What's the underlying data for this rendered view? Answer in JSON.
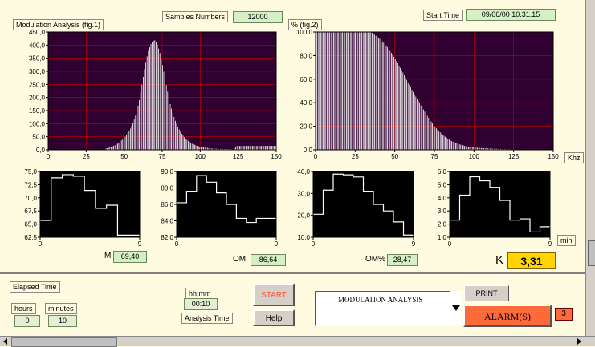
{
  "fig1": {
    "title": "Modulation Analysis (fig.1)"
  },
  "fig2": {
    "title": "% (fig.2)"
  },
  "samples": {
    "label": "Samples Numbers",
    "value": "12000"
  },
  "start_time": {
    "label": "Start Time",
    "value": "09/06/00 10.31.15"
  },
  "units": {
    "khz": "Khz",
    "min": "min"
  },
  "readouts": {
    "m": {
      "label": "M",
      "value": "69,40"
    },
    "om": {
      "label": "OM",
      "value": "86,64"
    },
    "om_pct": {
      "label": "OM%",
      "value": "28,47"
    },
    "k": {
      "label": "K",
      "value": "3,31"
    }
  },
  "controls": {
    "elapsed_label": "Elapsed Time",
    "hours_label": "hours",
    "minutes_label": "minutes",
    "hours_value": "0",
    "minutes_value": "10",
    "hhmm_label": "hh:mm",
    "analysis_value": "00:10",
    "analysis_label": "Analysis Time",
    "start_label": "START",
    "help_label": "Help",
    "mode_value": "MODULATION ANALYSIS",
    "print_label": "PRINT",
    "alarm_label": "ALARM(S)",
    "alarm_count": "3"
  },
  "colors": {
    "plot_bg": "#300030",
    "grid": "#c00000",
    "bars": "#ffffff",
    "alarm": "#ff6a3a",
    "k_bg": "#ffd400"
  },
  "chart_data": [
    {
      "type": "bar",
      "name": "fig1-histogram",
      "title": "Modulation Analysis (fig.1)",
      "xlim": [
        0,
        150
      ],
      "ylim": [
        0,
        450
      ],
      "xticks": [
        "0",
        "25",
        "50",
        "75",
        "100",
        "125",
        "150"
      ],
      "yticks": [
        "0,0",
        "50,0",
        "100,0",
        "150,0",
        "200,0",
        "250,0",
        "300,0",
        "350,0",
        "400,0",
        "450,0"
      ],
      "x": [
        38,
        40,
        42,
        44,
        46,
        48,
        50,
        52,
        54,
        56,
        58,
        60,
        62,
        64,
        66,
        68,
        70,
        72,
        74,
        76,
        78,
        80,
        82,
        84,
        86,
        88,
        90,
        92,
        94,
        96,
        98,
        100,
        102,
        104,
        106,
        108,
        110,
        114,
        118,
        122,
        124
      ],
      "values": [
        5,
        8,
        12,
        18,
        25,
        35,
        45,
        60,
        80,
        105,
        140,
        190,
        260,
        330,
        380,
        410,
        420,
        400,
        360,
        300,
        240,
        180,
        140,
        105,
        80,
        60,
        45,
        35,
        25,
        20,
        15,
        12,
        10,
        8,
        6,
        5,
        4,
        3,
        3,
        2,
        15
      ]
    },
    {
      "type": "bar",
      "name": "fig2-percent",
      "title": "% (fig.2)",
      "xunit": "Khz",
      "xlim": [
        0,
        150
      ],
      "ylim": [
        0,
        100
      ],
      "xticks": [
        "0",
        "25",
        "50",
        "75",
        "100",
        "125",
        "150"
      ],
      "yticks": [
        "0,0",
        "20,0",
        "40,0",
        "60,0",
        "80,0",
        "100,0"
      ],
      "x": [
        0,
        35,
        40,
        45,
        50,
        55,
        60,
        65,
        70,
        75,
        80,
        85,
        90,
        95,
        100,
        105,
        110,
        115,
        120,
        125,
        130,
        135,
        140,
        145,
        150
      ],
      "values": [
        100,
        100,
        95,
        88,
        78,
        66,
        53,
        41,
        30,
        20,
        13,
        8,
        5,
        3,
        2,
        1.5,
        1,
        0.8,
        0.6,
        0.4,
        0.3,
        0.2,
        0.1,
        0,
        0
      ]
    },
    {
      "type": "line",
      "step": true,
      "name": "small-1",
      "xlim": [
        0,
        9
      ],
      "ylim": [
        62.5,
        75
      ],
      "xticks": [
        "0",
        "9"
      ],
      "yticks": [
        "62,5",
        "65,0",
        "67,5",
        "70,0",
        "72,5",
        "75,0"
      ],
      "values": [
        65.7,
        73.8,
        74.4,
        74.1,
        71.4,
        68.0,
        68.6,
        62.9,
        62.9
      ]
    },
    {
      "type": "line",
      "step": true,
      "name": "small-2",
      "xlim": [
        0,
        9
      ],
      "ylim": [
        82,
        90
      ],
      "xticks": [
        "0",
        "9"
      ],
      "yticks": [
        "82,0",
        "84,0",
        "86,0",
        "88,0",
        "90,0"
      ],
      "values": [
        86.2,
        87.6,
        89.5,
        88.7,
        87.4,
        86.0,
        84.3,
        83.8,
        84.3,
        84.3
      ]
    },
    {
      "type": "line",
      "step": true,
      "name": "small-3",
      "xlim": [
        0,
        9
      ],
      "ylim": [
        10,
        40
      ],
      "xticks": [
        "0",
        "9"
      ],
      "yticks": [
        "10,0",
        "20,0",
        "30,0",
        "40,0"
      ],
      "values": [
        20.5,
        31.5,
        38.8,
        38.5,
        37.5,
        31.0,
        25.0,
        22.0,
        17.0,
        11.0
      ]
    },
    {
      "type": "line",
      "step": true,
      "name": "small-4",
      "xunit": "min",
      "xlim": [
        0,
        9
      ],
      "ylim": [
        1,
        6
      ],
      "xticks": [
        "0",
        "9"
      ],
      "yticks": [
        "1,0",
        "2,0",
        "3,0",
        "4,0",
        "5,0",
        "6,0"
      ],
      "values": [
        2.3,
        4.2,
        5.6,
        5.3,
        4.8,
        3.8,
        2.3,
        2.4,
        1.4,
        1.8
      ]
    }
  ]
}
